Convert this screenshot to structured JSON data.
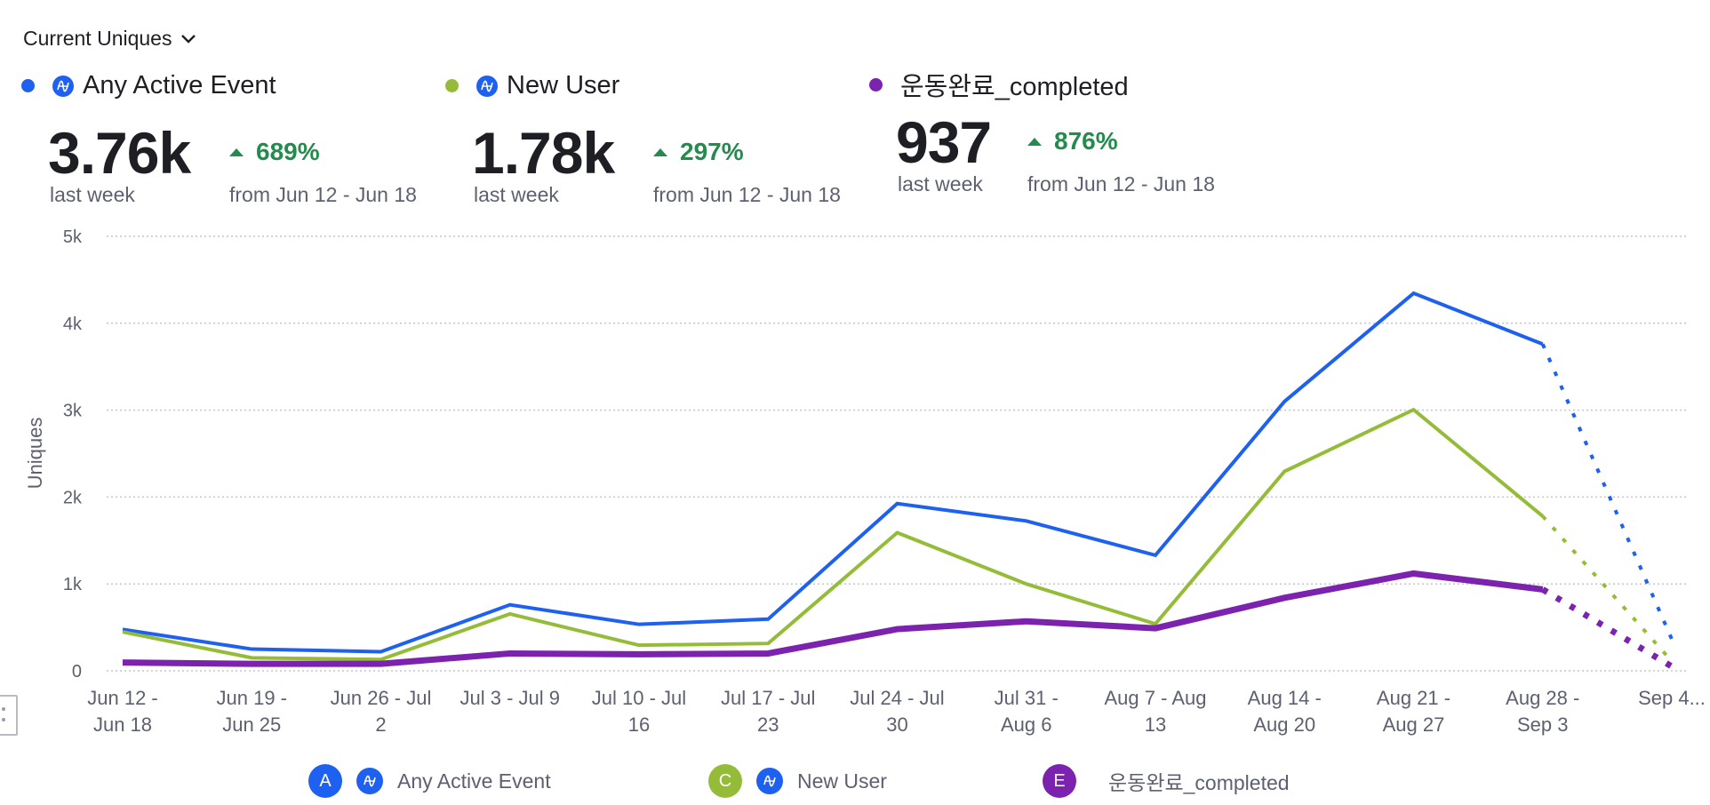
{
  "metric_selector": {
    "label": "Current Uniques",
    "icon": "chevron-down-icon"
  },
  "cards": [
    {
      "title": "Any Active Event",
      "color": "#1e61f0",
      "icon": "amplitude-event-icon",
      "value": "3.76k",
      "value_caption": "last week",
      "change": "689%",
      "change_direction": "up",
      "change_caption": "from Jun 12 - Jun 18"
    },
    {
      "title": "New User",
      "color": "#94bc38",
      "icon": "amplitude-event-icon",
      "value": "1.78k",
      "value_caption": "last week",
      "change": "297%",
      "change_direction": "up",
      "change_caption": "from Jun 12 - Jun 18"
    },
    {
      "title": "운동완료_completed",
      "color": "#7b22ae",
      "value": "937",
      "value_caption": "last week",
      "change": "876%",
      "change_direction": "up",
      "change_caption": "from Jun 12 - Jun 18"
    }
  ],
  "chart_data": {
    "type": "line",
    "title": "",
    "xlabel": "",
    "ylabel": "Uniques",
    "ylim": [
      0,
      5000
    ],
    "y_ticks": [
      0,
      1000,
      2000,
      3000,
      4000,
      5000
    ],
    "y_tick_labels": [
      "0",
      "1k",
      "2k",
      "3k",
      "4k",
      "5k"
    ],
    "grid": true,
    "grid_style": "dotted",
    "categories": [
      [
        "Jun 12 -",
        "Jun 18"
      ],
      [
        "Jun 19 -",
        "Jun 25"
      ],
      [
        "Jun 26 - Jul",
        "2"
      ],
      [
        "Jul 3 - Jul 9"
      ],
      [
        "Jul 10 - Jul",
        "16"
      ],
      [
        "Jul 17 - Jul",
        "23"
      ],
      [
        "Jul 24 - Jul",
        "30"
      ],
      [
        "Jul 31 -",
        "Aug 6"
      ],
      [
        "Aug 7 - Aug",
        "13"
      ],
      [
        "Aug 14 -",
        "Aug 20"
      ],
      [
        "Aug 21 -",
        "Aug 27"
      ],
      [
        "Aug 28 -",
        "Sep 3"
      ],
      [
        "Sep 4..."
      ]
    ],
    "incomplete_from_index": 11,
    "series": [
      {
        "name": "Any Active Event",
        "badge": "A",
        "color": "#1e61f0",
        "stroke": "regular",
        "values": [
          477,
          250,
          220,
          760,
          535,
          595,
          1925,
          1725,
          1330,
          3100,
          4345,
          3760,
          365
        ]
      },
      {
        "name": "New User",
        "badge": "C",
        "color": "#94bc38",
        "stroke": "regular",
        "values": [
          448,
          150,
          130,
          655,
          295,
          315,
          1590,
          1000,
          540,
          2295,
          3005,
          1780,
          110
        ]
      },
      {
        "name": "운동완료_completed",
        "badge": "E",
        "color": "#7b22ae",
        "stroke": "bold",
        "values": [
          96,
          80,
          80,
          200,
          190,
          200,
          480,
          570,
          490,
          840,
          1120,
          937,
          50
        ]
      }
    ],
    "legend_position": "bottom"
  }
}
